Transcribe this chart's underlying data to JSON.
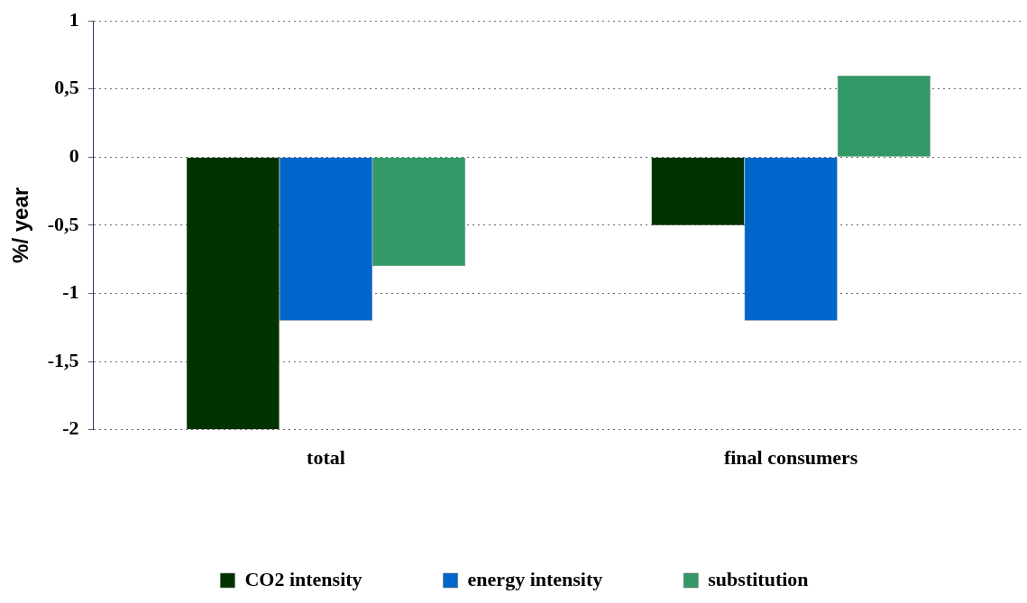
{
  "chart_data": {
    "type": "bar",
    "ylabel": "%/ year",
    "categories": [
      "total",
      "final consumers"
    ],
    "series": [
      {
        "name": "CO2 intensity",
        "color": "#003300",
        "values": [
          -2,
          -0.5
        ]
      },
      {
        "name": "energy intensity",
        "color": "#0066cc",
        "values": [
          -1.2,
          -1.2
        ]
      },
      {
        "name": "substitution",
        "color": "#339966",
        "values": [
          -0.8,
          0.6
        ]
      }
    ],
    "ylim": [
      -2,
      1
    ],
    "yticks": [
      {
        "value": -2,
        "label": "-2"
      },
      {
        "value": -1.5,
        "label": "-1,5"
      },
      {
        "value": -1,
        "label": "-1"
      },
      {
        "value": -0.5,
        "label": "-0,5"
      },
      {
        "value": 0,
        "label": "0"
      },
      {
        "value": 0.5,
        "label": "0,5"
      },
      {
        "value": 1,
        "label": "1"
      }
    ],
    "grid": "y",
    "legend": "bottom"
  }
}
